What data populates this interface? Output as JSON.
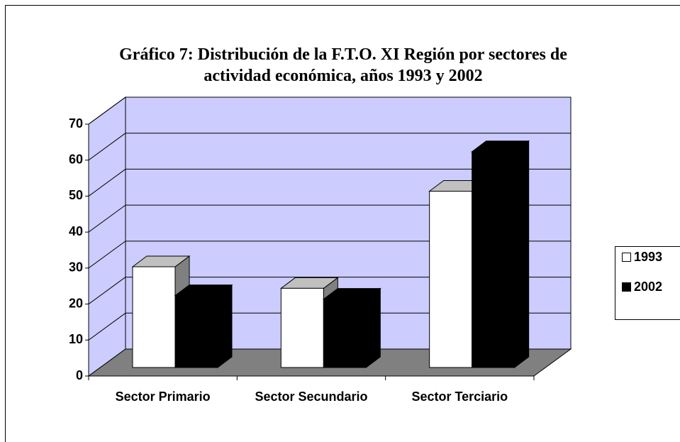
{
  "chart_data": {
    "type": "bar3d",
    "title": "Gráfico 7: Distribución de la F.T.O. XI Región por sectores de actividad económica, años 1993 y 2002",
    "categories": [
      "Sector Primario",
      "Sector Secundario",
      "Sector Terciario"
    ],
    "series": [
      {
        "name": "1993",
        "color": "#ffffff",
        "values": [
          28,
          22,
          49
        ]
      },
      {
        "name": "2002",
        "color": "#000000",
        "values": [
          20,
          19,
          60
        ]
      }
    ],
    "ylim": [
      0,
      70
    ],
    "yticks": [
      0,
      10,
      20,
      30,
      40,
      50,
      60,
      70
    ],
    "grid": true,
    "legend": "right"
  }
}
